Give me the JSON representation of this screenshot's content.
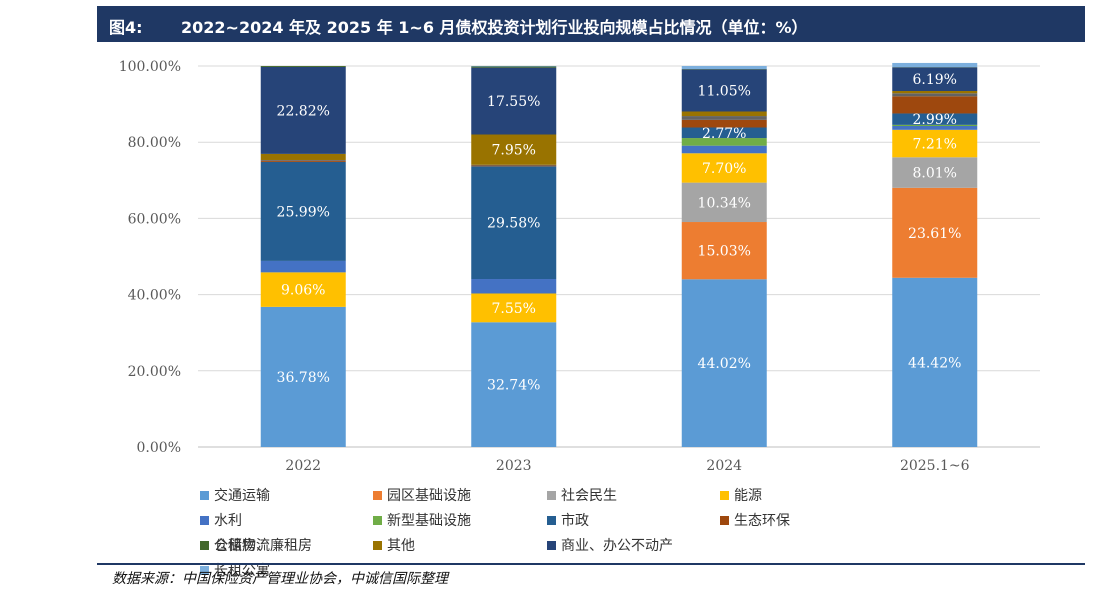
{
  "header": {
    "figure_number": "图4:",
    "title": "2022~2024 年及 2025 年 1~6 月债权投资计划行业投向规模占比情况（单位：%）"
  },
  "source": "数据来源：中国保险资产管理业协会，中诚信国际整理",
  "chart_data": {
    "type": "bar",
    "stacked": true,
    "categories": [
      "2022",
      "2023",
      "2024",
      "2025.1~6"
    ],
    "y_tick_labels": [
      "0.00%",
      "20.00%",
      "40.00%",
      "60.00%",
      "80.00%",
      "100.00%"
    ],
    "ylim": [
      0,
      100
    ],
    "grid": true,
    "legend_position": "bottom",
    "series": [
      {
        "name": "交通运输",
        "color": "#5B9BD5",
        "values": [
          36.78,
          32.74,
          44.02,
          44.42
        ],
        "labels": [
          "36.78%",
          "32.74%",
          "44.02%",
          "44.42%"
        ]
      },
      {
        "name": "园区基础设施",
        "color": "#ED7D31",
        "values": [
          0,
          0,
          15.03,
          23.61
        ],
        "labels": [
          "",
          "",
          "15.03%",
          "23.61%"
        ]
      },
      {
        "name": "社会民生",
        "color": "#A5A5A5",
        "values": [
          0,
          0,
          10.34,
          8.01
        ],
        "labels": [
          "",
          "",
          "10.34%",
          "8.01%"
        ]
      },
      {
        "name": "能源",
        "color": "#FFC000",
        "values": [
          9.06,
          7.55,
          7.7,
          7.21
        ],
        "labels": [
          "9.06%",
          "7.55%",
          "7.70%",
          "7.21%"
        ]
      },
      {
        "name": "水利",
        "color": "#4472C4",
        "values": [
          3.0,
          3.8,
          2.0,
          1.0
        ],
        "labels": [
          "",
          "",
          "",
          ""
        ]
      },
      {
        "name": "新型基础设施",
        "color": "#70AD47",
        "values": [
          0,
          0,
          2.0,
          0.3
        ],
        "labels": [
          "",
          "",
          "",
          ""
        ]
      },
      {
        "name": "市政",
        "color": "#255E91",
        "values": [
          25.99,
          29.58,
          2.77,
          2.99
        ],
        "labels": [
          "25.99%",
          "29.58%",
          "2.77%",
          "2.99%"
        ]
      },
      {
        "name": "生态环保",
        "color": "#9E480E",
        "values": [
          0.3,
          0.2,
          2.0,
          4.5
        ],
        "labels": [
          "",
          "",
          "",
          ""
        ]
      },
      {
        "name": "仓储物流",
        "color": "#636363",
        "values": [
          0.2,
          0.2,
          1.0,
          0.8
        ],
        "labels": [
          "",
          "",
          "",
          ""
        ]
      },
      {
        "name": "其他",
        "color": "#997300",
        "values": [
          1.6,
          7.95,
          1.2,
          0.6
        ],
        "labels": [
          "",
          "7.95%",
          "",
          ""
        ]
      },
      {
        "name": "商业、办公不动产",
        "color": "#264478",
        "values": [
          22.82,
          17.55,
          11.05,
          6.19
        ],
        "labels": [
          "22.82%",
          "17.55%",
          "11.05%",
          "6.19%"
        ]
      },
      {
        "name": "公租房、廉租房",
        "color": "#43682B",
        "values": [
          0.25,
          0.3,
          0.09,
          0.07
        ],
        "labels": [
          "",
          "",
          "",
          ""
        ]
      },
      {
        "name": "长租公寓",
        "color": "#7CAFDD",
        "values": [
          0,
          0.13,
          0.8,
          1.1
        ],
        "labels": [
          "",
          "",
          "",
          ""
        ]
      }
    ]
  }
}
